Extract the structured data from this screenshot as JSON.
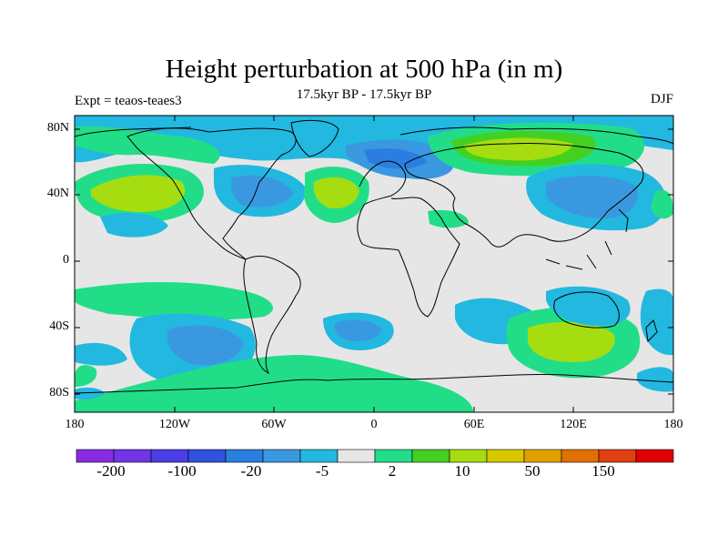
{
  "figure": {
    "title": "Height perturbation at 500 hPa (in m)",
    "subtitle": "17.5kyr BP - 17.5kyr BP",
    "left_label": "Expt = teaos-teaes3",
    "right_label": "DJF"
  },
  "axes": {
    "y_ticks": [
      "80N",
      "40N",
      "0",
      "40S",
      "80S"
    ],
    "x_ticks": [
      "180",
      "120W",
      "60W",
      "0",
      "60E",
      "120E",
      "180"
    ]
  },
  "colorbar": {
    "labels": [
      "-200",
      "-100",
      "-20",
      "-5",
      "2",
      "10",
      "50",
      "150"
    ],
    "colors": [
      "#8a2be2",
      "#6f35e6",
      "#4a3de6",
      "#2f52e0",
      "#2a7ee0",
      "#3a98e0",
      "#22b8e0",
      "#e6e6e6",
      "#22dd88",
      "#44d020",
      "#a6dd10",
      "#d8c800",
      "#e0a000",
      "#e07000",
      "#e04010",
      "#e00000"
    ]
  },
  "map": {
    "background_color": "#e6e6e6",
    "positive_colors": [
      "#22dd88",
      "#44d020",
      "#a6dd10",
      "#d8c800"
    ],
    "negative_colors": [
      "#22b8e0",
      "#3a98e0",
      "#2a7ee0"
    ]
  }
}
